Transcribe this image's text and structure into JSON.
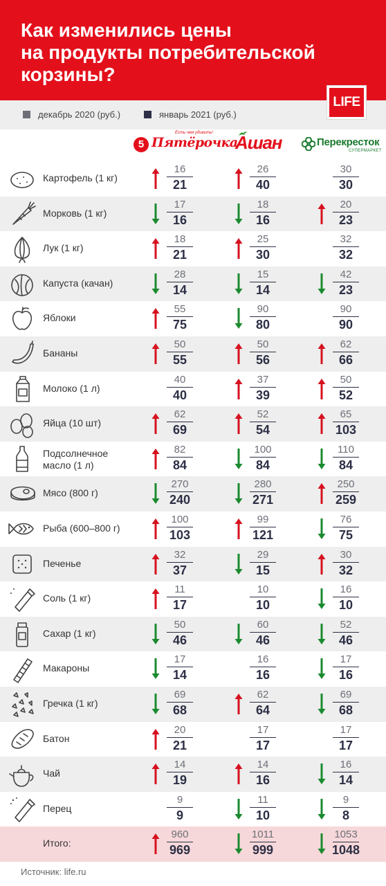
{
  "header": {
    "title": "Как изменились цены\nна продукты потребительской\nкорзины?",
    "logo": "LIFE"
  },
  "legend": [
    {
      "label": "декабрь 2020 (руб.)",
      "color": "#6d6f78"
    },
    {
      "label": "январь 2021 (руб.)",
      "color": "#2c2f45"
    }
  ],
  "stores": {
    "pyaterochka": {
      "name": "Пятёрочка",
      "slogan": "Есть чем удивить!"
    },
    "auchan": {
      "name": "Ашан"
    },
    "perekrestok": {
      "name": "Перекресток",
      "sub": "СУПЕРМАРКЕТ"
    }
  },
  "colors": {
    "up": "#d6121f",
    "down": "#1b8a2f",
    "accent": "#e3101c"
  },
  "products": [
    {
      "icon": "potato-icon",
      "name": "Картофель (1 кг)",
      "prices": [
        [
          16,
          21
        ],
        [
          26,
          40
        ],
        [
          30,
          30
        ]
      ]
    },
    {
      "icon": "carrot-icon",
      "name": "Морковь (1 кг)",
      "prices": [
        [
          17,
          16
        ],
        [
          18,
          16
        ],
        [
          20,
          23
        ]
      ]
    },
    {
      "icon": "onion-icon",
      "name": "Лук (1 кг)",
      "prices": [
        [
          18,
          21
        ],
        [
          25,
          30
        ],
        [
          32,
          32
        ]
      ]
    },
    {
      "icon": "cabbage-icon",
      "name": "Капуста (качан)",
      "prices": [
        [
          28,
          14
        ],
        [
          15,
          14
        ],
        [
          42,
          23
        ]
      ]
    },
    {
      "icon": "apple-icon",
      "name": "Яблоки",
      "prices": [
        [
          55,
          75
        ],
        [
          90,
          80
        ],
        [
          90,
          90
        ]
      ]
    },
    {
      "icon": "banana-icon",
      "name": "Бананы",
      "prices": [
        [
          50,
          55
        ],
        [
          50,
          56
        ],
        [
          62,
          66
        ]
      ]
    },
    {
      "icon": "milk-icon",
      "name": "Молоко (1 л)",
      "prices": [
        [
          40,
          40
        ],
        [
          37,
          39
        ],
        [
          50,
          52
        ]
      ]
    },
    {
      "icon": "eggs-icon",
      "name": "Яйца (10 шт)",
      "prices": [
        [
          62,
          69
        ],
        [
          52,
          54
        ],
        [
          65,
          103
        ]
      ]
    },
    {
      "icon": "oil-bottle-icon",
      "name": "Подсолнечное\nмасло (1 л)",
      "prices": [
        [
          82,
          84
        ],
        [
          100,
          84
        ],
        [
          110,
          84
        ]
      ]
    },
    {
      "icon": "meat-icon",
      "name": "Мясо (800 г)",
      "prices": [
        [
          270,
          240
        ],
        [
          280,
          271
        ],
        [
          250,
          259
        ]
      ]
    },
    {
      "icon": "fish-icon",
      "name": "Рыба (600–800 г)",
      "prices": [
        [
          100,
          103
        ],
        [
          99,
          121
        ],
        [
          76,
          75
        ]
      ]
    },
    {
      "icon": "cookie-icon",
      "name": "Печенье",
      "prices": [
        [
          32,
          37
        ],
        [
          29,
          15
        ],
        [
          30,
          32
        ]
      ]
    },
    {
      "icon": "salt-icon",
      "name": "Соль (1 кг)",
      "prices": [
        [
          11,
          17
        ],
        [
          10,
          10
        ],
        [
          16,
          10
        ]
      ]
    },
    {
      "icon": "sugar-icon",
      "name": "Сахар (1 кг)",
      "prices": [
        [
          50,
          46
        ],
        [
          60,
          46
        ],
        [
          52,
          46
        ]
      ]
    },
    {
      "icon": "pasta-icon",
      "name": "Макароны",
      "prices": [
        [
          17,
          14
        ],
        [
          16,
          16
        ],
        [
          17,
          16
        ]
      ]
    },
    {
      "icon": "buckwheat-icon",
      "name": "Гречка (1 кг)",
      "prices": [
        [
          69,
          68
        ],
        [
          62,
          64
        ],
        [
          69,
          68
        ]
      ]
    },
    {
      "icon": "bread-icon",
      "name": "Батон",
      "prices": [
        [
          20,
          21
        ],
        [
          17,
          17
        ],
        [
          17,
          17
        ]
      ]
    },
    {
      "icon": "teapot-icon",
      "name": "Чай",
      "prices": [
        [
          14,
          19
        ],
        [
          14,
          16
        ],
        [
          16,
          14
        ]
      ]
    },
    {
      "icon": "pepper-shaker-icon",
      "name": "Перец",
      "prices": [
        [
          9,
          9
        ],
        [
          11,
          10
        ],
        [
          9,
          8
        ]
      ]
    }
  ],
  "total": {
    "name": "Итого:",
    "prices": [
      [
        960,
        969
      ],
      [
        1011,
        999
      ],
      [
        1053,
        1048
      ]
    ]
  },
  "source": "Источник: life.ru"
}
